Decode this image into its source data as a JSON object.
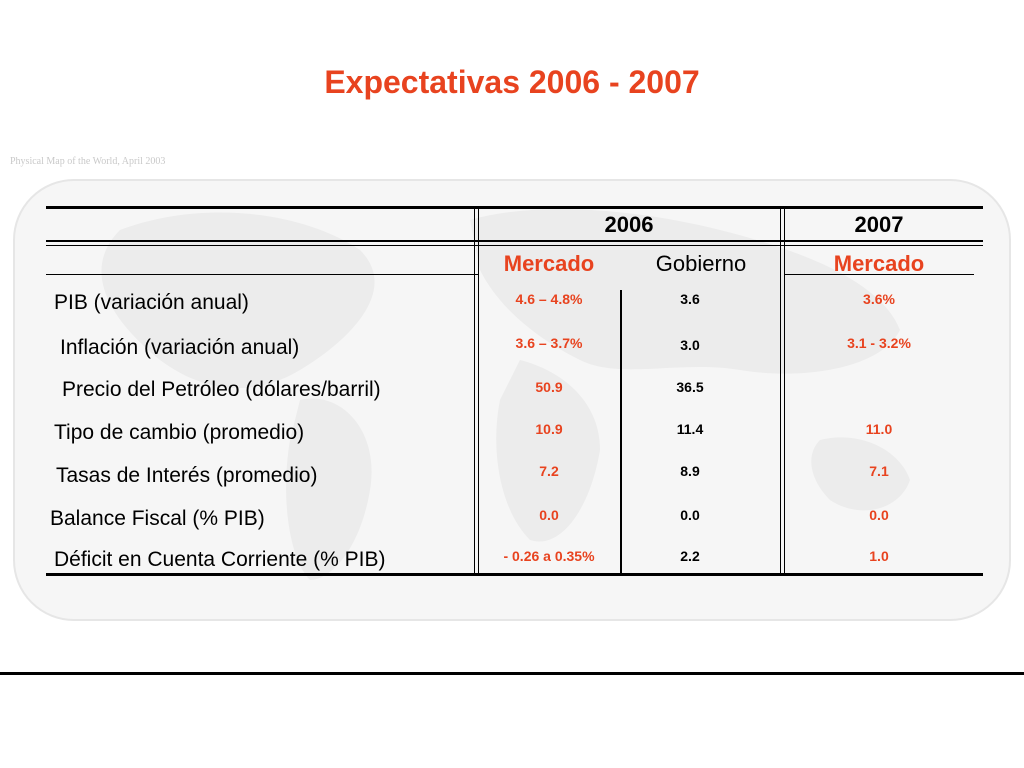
{
  "title": "Expectativas 2006 - 2007",
  "background": {
    "map_caption": "Physical Map of the World, April 2003"
  },
  "header": {
    "years": [
      "2006",
      "2007"
    ],
    "sources": [
      "Mercado",
      "Gobierno",
      "Mercado"
    ]
  },
  "rows": [
    {
      "label": "PIB (variación anual)",
      "mercado_2006": "4.6 – 4.8%",
      "gobierno_2006": "3.6",
      "mercado_2007": "3.6%"
    },
    {
      "label": "Inflación (variación anual)",
      "mercado_2006": "3.6 – 3.7%",
      "gobierno_2006": "3.0",
      "mercado_2007": "3.1 - 3.2%"
    },
    {
      "label": "Precio del Petróleo (dólares/barril)",
      "mercado_2006": "50.9",
      "gobierno_2006": "36.5",
      "mercado_2007": ""
    },
    {
      "label": "Tipo de cambio (promedio)",
      "mercado_2006": "10.9",
      "gobierno_2006": "11.4",
      "mercado_2007": "11.0"
    },
    {
      "label": "Tasas de Interés (promedio)",
      "mercado_2006": "7.2",
      "gobierno_2006": "8.9",
      "mercado_2007": "7.1"
    },
    {
      "label": "Balance Fiscal (% PIB)",
      "mercado_2006": "0.0",
      "gobierno_2006": "0.0",
      "mercado_2007": "0.0"
    },
    {
      "label": "Déficit en Cuenta Corriente (% PIB)",
      "mercado_2006": "- 0.26 a 0.35%",
      "gobierno_2006": "2.2",
      "mercado_2007": "1.0"
    }
  ],
  "colors": {
    "accent_red": "#e8431f",
    "text": "#000000",
    "map_faint": "#eeeeee"
  }
}
